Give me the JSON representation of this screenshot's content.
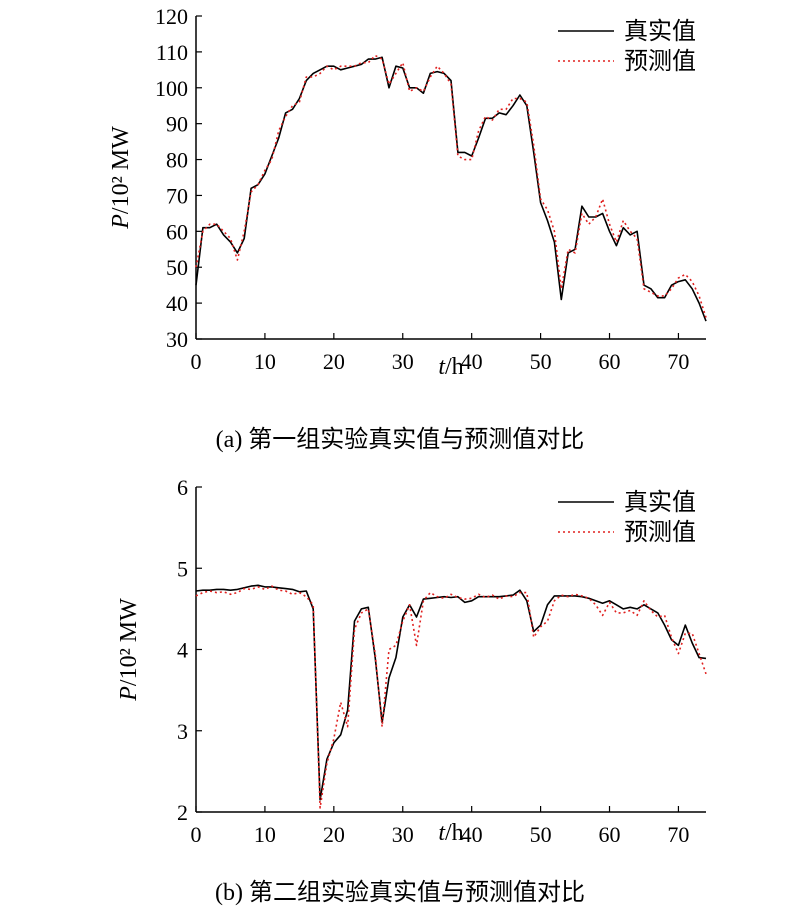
{
  "chart_data": [
    {
      "type": "line",
      "caption": "(a) 第一组实验真实值与预测值对比",
      "ylabel_var": "P",
      "ylabel_unit": "/10² MW",
      "xlabel_var": "t",
      "xlabel_unit": "/h",
      "xlim": [
        0,
        74
      ],
      "ylim": [
        30,
        120
      ],
      "xticks": [
        0,
        10,
        20,
        30,
        40,
        50,
        60,
        70
      ],
      "yticks": [
        30,
        40,
        50,
        60,
        70,
        80,
        90,
        100,
        110,
        120
      ],
      "legend_position": "top-right",
      "grid": false,
      "x": [
        0,
        1,
        2,
        3,
        4,
        5,
        6,
        7,
        8,
        9,
        10,
        11,
        12,
        13,
        14,
        15,
        16,
        17,
        18,
        19,
        20,
        21,
        22,
        23,
        24,
        25,
        26,
        27,
        28,
        29,
        30,
        31,
        32,
        33,
        34,
        35,
        36,
        37,
        38,
        39,
        40,
        41,
        42,
        43,
        44,
        45,
        46,
        47,
        48,
        49,
        50,
        51,
        52,
        53,
        54,
        55,
        56,
        57,
        58,
        59,
        60,
        61,
        62,
        63,
        64,
        65,
        66,
        67,
        68,
        69,
        70,
        71,
        72,
        73,
        74
      ],
      "series": [
        {
          "name": "真实值",
          "color": "#000000",
          "dash": "solid",
          "values": [
            45,
            61,
            61,
            62,
            59,
            57,
            54,
            58,
            72,
            73,
            76,
            81,
            86,
            93,
            94,
            97,
            102,
            104,
            105,
            106,
            106,
            105,
            105.5,
            106,
            106.5,
            108,
            108,
            108.5,
            100,
            106,
            105.5,
            100,
            100,
            98.5,
            104,
            104.5,
            104,
            102,
            82,
            82,
            81,
            86,
            91.5,
            91.5,
            93,
            92.5,
            95,
            98,
            95,
            82,
            68,
            63,
            57,
            41,
            54,
            55,
            67,
            64,
            64,
            65,
            60,
            56,
            61,
            59,
            60,
            45,
            44,
            41.5,
            41.5,
            45,
            46,
            46.5,
            44,
            40,
            35
          ]
        },
        {
          "name": "预测值",
          "color": "#e0201f",
          "dash": "dotted",
          "values": [
            50,
            60,
            62,
            62,
            60,
            58,
            52,
            60,
            71,
            73,
            77,
            80,
            88,
            92,
            95,
            96,
            103,
            103,
            104,
            106,
            105,
            106,
            106,
            106,
            107,
            107,
            109,
            108,
            101,
            104,
            107,
            99,
            100,
            99,
            103,
            106,
            104,
            101,
            81,
            80,
            80,
            88,
            92,
            91,
            94,
            94,
            97,
            97,
            96,
            84,
            69,
            66,
            60,
            44,
            55,
            54,
            65,
            62,
            64,
            69,
            62,
            57,
            63,
            60,
            58,
            44,
            43,
            42,
            42,
            44,
            47,
            48,
            46,
            42,
            36
          ]
        }
      ]
    },
    {
      "type": "line",
      "caption": "(b) 第二组实验真实值与预测值对比",
      "ylabel_var": "P",
      "ylabel_unit": "/10² MW",
      "xlabel_var": "t",
      "xlabel_unit": "/h",
      "xlim": [
        0,
        74
      ],
      "ylim": [
        2,
        6
      ],
      "xticks": [
        0,
        10,
        20,
        30,
        40,
        50,
        60,
        70
      ],
      "yticks": [
        2,
        3,
        4,
        5,
        6
      ],
      "legend_position": "top-right",
      "grid": false,
      "x": [
        0,
        1,
        2,
        3,
        4,
        5,
        6,
        7,
        8,
        9,
        10,
        11,
        12,
        13,
        14,
        15,
        16,
        17,
        18,
        19,
        20,
        21,
        22,
        23,
        24,
        25,
        26,
        27,
        28,
        29,
        30,
        31,
        32,
        33,
        34,
        35,
        36,
        37,
        38,
        39,
        40,
        41,
        42,
        43,
        44,
        45,
        46,
        47,
        48,
        49,
        50,
        51,
        52,
        53,
        54,
        55,
        56,
        57,
        58,
        59,
        60,
        61,
        62,
        63,
        64,
        65,
        66,
        67,
        68,
        69,
        70,
        71,
        72,
        73,
        74
      ],
      "series": [
        {
          "name": "真实值",
          "color": "#000000",
          "dash": "solid",
          "values": [
            4.72,
            4.73,
            4.73,
            4.74,
            4.74,
            4.73,
            4.74,
            4.76,
            4.78,
            4.79,
            4.77,
            4.77,
            4.76,
            4.75,
            4.74,
            4.71,
            4.72,
            4.5,
            2.15,
            2.65,
            2.85,
            2.95,
            3.25,
            4.35,
            4.5,
            4.52,
            3.9,
            3.1,
            3.65,
            3.9,
            4.4,
            4.55,
            4.4,
            4.62,
            4.63,
            4.64,
            4.65,
            4.64,
            4.65,
            4.58,
            4.6,
            4.65,
            4.65,
            4.65,
            4.65,
            4.66,
            4.67,
            4.73,
            4.6,
            4.22,
            4.3,
            4.55,
            4.66,
            4.66,
            4.66,
            4.66,
            4.65,
            4.63,
            4.6,
            4.57,
            4.6,
            4.55,
            4.5,
            4.52,
            4.5,
            4.55,
            4.5,
            4.45,
            4.3,
            4.12,
            4.05,
            4.3,
            4.08,
            3.9,
            3.89
          ]
        },
        {
          "name": "预测值",
          "color": "#e0201f",
          "dash": "dotted",
          "values": [
            4.66,
            4.7,
            4.72,
            4.7,
            4.71,
            4.68,
            4.7,
            4.75,
            4.74,
            4.77,
            4.74,
            4.78,
            4.73,
            4.72,
            4.68,
            4.7,
            4.65,
            4.55,
            2.05,
            2.6,
            2.9,
            3.35,
            3.05,
            4.25,
            4.45,
            4.5,
            3.95,
            3.05,
            4.0,
            4.05,
            4.35,
            4.55,
            4.05,
            4.6,
            4.7,
            4.65,
            4.63,
            4.68,
            4.64,
            4.62,
            4.63,
            4.68,
            4.64,
            4.67,
            4.62,
            4.66,
            4.65,
            4.7,
            4.7,
            4.15,
            4.28,
            4.35,
            4.6,
            4.67,
            4.65,
            4.68,
            4.66,
            4.63,
            4.55,
            4.42,
            4.58,
            4.45,
            4.45,
            4.48,
            4.42,
            4.6,
            4.48,
            4.4,
            4.42,
            4.15,
            3.95,
            4.2,
            4.2,
            3.95,
            3.7
          ]
        }
      ]
    }
  ]
}
